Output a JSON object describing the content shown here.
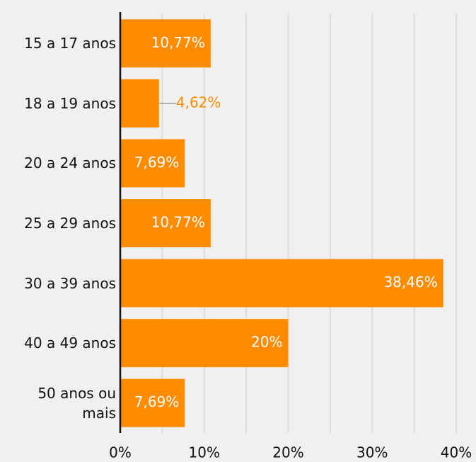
{
  "chart_data": {
    "type": "barh",
    "categories": [
      "15 a 17 anos",
      "18 a 19 anos",
      "20 a 24 anos",
      "25 a 29 anos",
      "30 a 39 anos",
      "40 a 49 anos",
      "50 anos ou mais"
    ],
    "values": [
      10.77,
      4.62,
      7.69,
      10.77,
      38.46,
      20,
      7.69
    ],
    "value_labels": [
      "10,77%",
      "4,62%",
      "7,69%",
      "10,77%",
      "38,46%",
      "20%",
      "7,69%"
    ],
    "color": "#ff8c00",
    "xlim": [
      0,
      40
    ],
    "xticks": [
      {
        "value": 0,
        "label": "0%"
      },
      {
        "value": 10,
        "label": "10%"
      },
      {
        "value": 20,
        "label": "20%"
      },
      {
        "value": 30,
        "label": "30%"
      },
      {
        "value": 40,
        "label": "40%"
      }
    ],
    "minor_xticks": [
      5,
      15,
      25,
      35
    ],
    "grid": true
  }
}
